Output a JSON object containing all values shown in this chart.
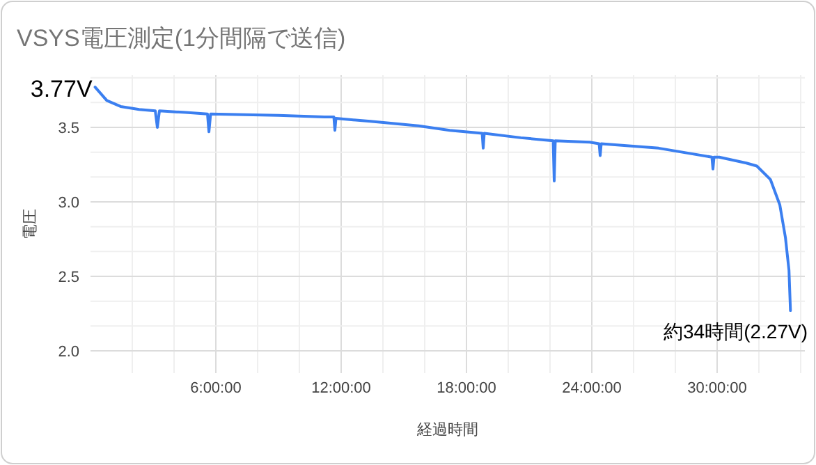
{
  "chart_data": {
    "type": "line",
    "title": "VSYS電圧測定(1分間隔で送信)",
    "xlabel": "経過時間",
    "ylabel": "電圧",
    "xlim": [
      0,
      34.2
    ],
    "ylim": [
      1.85,
      3.85
    ],
    "xticks": [
      {
        "value": 2,
        "label": null
      },
      {
        "value": 4,
        "label": null
      },
      {
        "value": 6,
        "label": "6:00:00"
      },
      {
        "value": 8,
        "label": null
      },
      {
        "value": 10,
        "label": null
      },
      {
        "value": 12,
        "label": "12:00:00"
      },
      {
        "value": 14,
        "label": null
      },
      {
        "value": 16,
        "label": null
      },
      {
        "value": 18,
        "label": "18:00:00"
      },
      {
        "value": 20,
        "label": null
      },
      {
        "value": 22,
        "label": null
      },
      {
        "value": 24,
        "label": "24:00:00"
      },
      {
        "value": 26,
        "label": null
      },
      {
        "value": 28,
        "label": null
      },
      {
        "value": 30,
        "label": "30:00:00"
      },
      {
        "value": 32,
        "label": null
      },
      {
        "value": 34,
        "label": null
      }
    ],
    "yticks": [
      {
        "value": 2,
        "label": "2.0"
      },
      {
        "value": 2.167,
        "label": null
      },
      {
        "value": 2.333,
        "label": null
      },
      {
        "value": 2.5,
        "label": "2.5"
      },
      {
        "value": 2.667,
        "label": null
      },
      {
        "value": 2.833,
        "label": null
      },
      {
        "value": 3,
        "label": "3.0"
      },
      {
        "value": 3.167,
        "label": null
      },
      {
        "value": 3.333,
        "label": null
      },
      {
        "value": 3.5,
        "label": "3.5"
      },
      {
        "value": 3.667,
        "label": null
      },
      {
        "value": 3.833,
        "label": null
      }
    ],
    "grid": true,
    "marker": "none",
    "line_style": "solid",
    "series": [
      {
        "color": "#3b7ff0",
        "x": [
          0.22,
          0.78,
          1.44,
          2.33,
          3.1,
          3.2,
          3.3,
          4.56,
          5.6,
          5.67,
          5.75,
          9,
          11.2,
          11.65,
          11.7,
          11.75,
          13.4,
          15.7,
          17.2,
          18.75,
          18.8,
          18.85,
          20.6,
          22.15,
          22.2,
          22.25,
          23.9,
          24.35,
          24.4,
          24.45,
          27.2,
          29.75,
          29.8,
          29.85,
          30.1,
          31.4,
          31.9,
          32.55,
          33,
          33.27,
          33.44,
          33.51
        ],
        "values": [
          3.77,
          3.68,
          3.64,
          3.62,
          3.61,
          3.5,
          3.61,
          3.6,
          3.59,
          3.47,
          3.59,
          3.58,
          3.57,
          3.57,
          3.48,
          3.56,
          3.54,
          3.51,
          3.48,
          3.46,
          3.36,
          3.46,
          3.43,
          3.41,
          3.14,
          3.41,
          3.4,
          3.39,
          3.31,
          3.39,
          3.36,
          3.3,
          3.22,
          3.3,
          3.3,
          3.26,
          3.24,
          3.15,
          2.98,
          2.76,
          2.54,
          2.27
        ]
      }
    ],
    "annotations": [
      {
        "text": "3.77V",
        "x": 0.22,
        "y": 3.77
      },
      {
        "text": "約34時間(2.27V)",
        "x": 33.51,
        "y": 2.27
      }
    ]
  }
}
